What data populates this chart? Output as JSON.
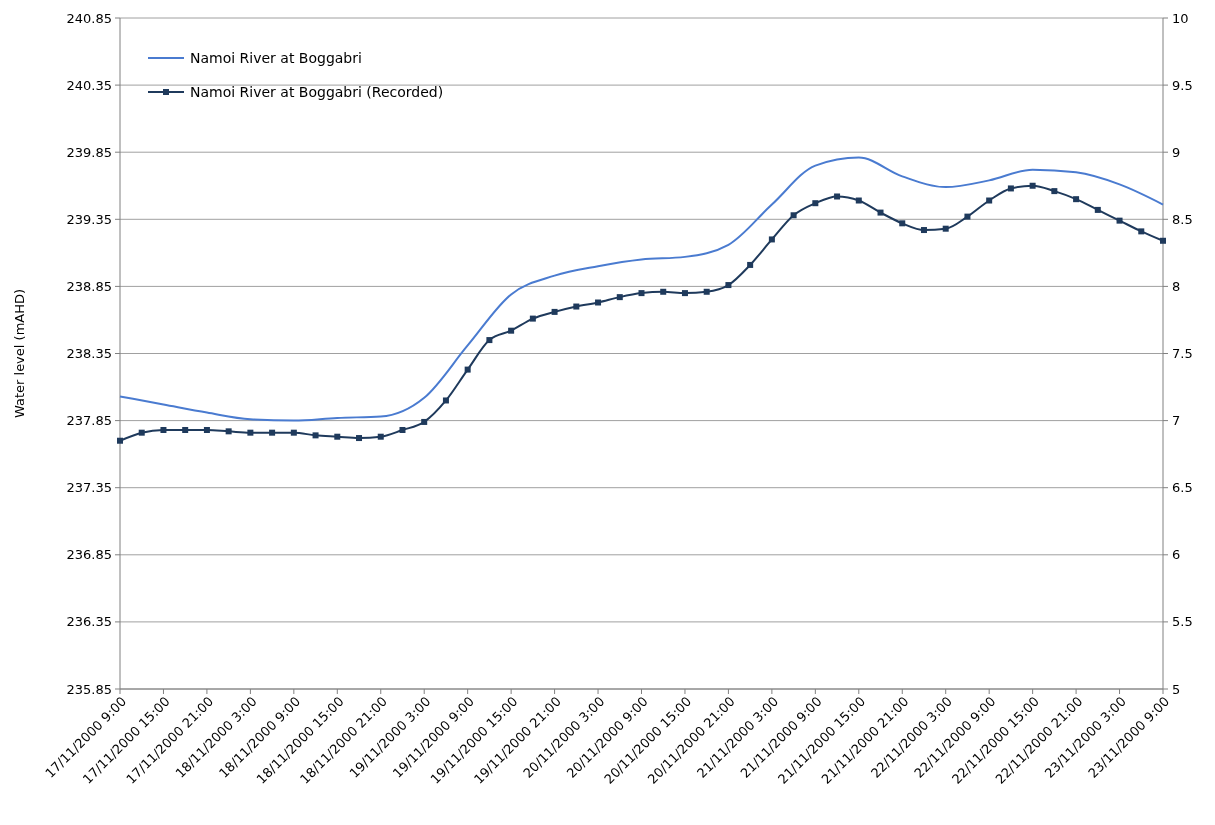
{
  "chart_data": {
    "type": "line",
    "ylabel": "Water level (mAHD)",
    "ylim": [
      235.85,
      240.85
    ],
    "yticks": [
      235.85,
      236.35,
      236.85,
      237.35,
      237.85,
      238.35,
      238.85,
      239.35,
      239.85,
      240.35,
      240.85
    ],
    "y2lim": [
      5,
      10
    ],
    "y2ticks": [
      5,
      5.5,
      6,
      6.5,
      7,
      7.5,
      8,
      8.5,
      9,
      9.5,
      10
    ],
    "xlim": [
      "2000-11-17T09:00",
      "2000-11-23T09:00"
    ],
    "xticks": [
      {
        "value": "2000-11-17T09:00",
        "label": "17/11/2000 9:00"
      },
      {
        "value": "2000-11-17T15:00",
        "label": "17/11/2000 15:00"
      },
      {
        "value": "2000-11-17T21:00",
        "label": "17/11/2000 21:00"
      },
      {
        "value": "2000-11-18T03:00",
        "label": "18/11/2000 3:00"
      },
      {
        "value": "2000-11-18T09:00",
        "label": "18/11/2000 9:00"
      },
      {
        "value": "2000-11-18T15:00",
        "label": "18/11/2000 15:00"
      },
      {
        "value": "2000-11-18T21:00",
        "label": "18/11/2000 21:00"
      },
      {
        "value": "2000-11-19T03:00",
        "label": "19/11/2000 3:00"
      },
      {
        "value": "2000-11-19T09:00",
        "label": "19/11/2000 9:00"
      },
      {
        "value": "2000-11-19T15:00",
        "label": "19/11/2000 15:00"
      },
      {
        "value": "2000-11-19T21:00",
        "label": "19/11/2000 21:00"
      },
      {
        "value": "2000-11-20T03:00",
        "label": "20/11/2000 3:00"
      },
      {
        "value": "2000-11-20T09:00",
        "label": "20/11/2000 9:00"
      },
      {
        "value": "2000-11-20T15:00",
        "label": "20/11/2000 15:00"
      },
      {
        "value": "2000-11-20T21:00",
        "label": "20/11/2000 21:00"
      },
      {
        "value": "2000-11-21T03:00",
        "label": "21/11/2000 3:00"
      },
      {
        "value": "2000-11-21T09:00",
        "label": "21/11/2000 9:00"
      },
      {
        "value": "2000-11-21T15:00",
        "label": "21/11/2000 15:00"
      },
      {
        "value": "2000-11-21T21:00",
        "label": "21/11/2000 21:00"
      },
      {
        "value": "2000-11-22T03:00",
        "label": "22/11/2000 3:00"
      },
      {
        "value": "2000-11-22T09:00",
        "label": "22/11/2000 9:00"
      },
      {
        "value": "2000-11-22T15:00",
        "label": "22/11/2000 15:00"
      },
      {
        "value": "2000-11-22T21:00",
        "label": "22/11/2000 21:00"
      },
      {
        "value": "2000-11-23T03:00",
        "label": "23/11/2000 3:00"
      },
      {
        "value": "2000-11-23T09:00",
        "label": "23/11/2000 9:00"
      }
    ],
    "grid": "y",
    "legend": "top left",
    "series": [
      {
        "name": "Namoi River at Boggabri",
        "color": "#4a7bd0",
        "marker": "none",
        "x": [
          "2000-11-17T09:00",
          "2000-11-17T15:00",
          "2000-11-17T21:00",
          "2000-11-18T03:00",
          "2000-11-18T09:00",
          "2000-11-18T15:00",
          "2000-11-18T21:00",
          "2000-11-19T03:00",
          "2000-11-19T09:00",
          "2000-11-19T15:00",
          "2000-11-19T21:00",
          "2000-11-20T03:00",
          "2000-11-20T09:00",
          "2000-11-20T15:00",
          "2000-11-20T21:00",
          "2000-11-21T03:00",
          "2000-11-21T09:00",
          "2000-11-21T15:00",
          "2000-11-21T21:00",
          "2000-11-22T03:00",
          "2000-11-22T09:00",
          "2000-11-22T15:00",
          "2000-11-22T21:00",
          "2000-11-23T03:00",
          "2000-11-23T09:00"
        ],
        "values": [
          238.03,
          237.97,
          237.91,
          237.86,
          237.85,
          237.87,
          237.88,
          238.02,
          238.41,
          238.79,
          238.93,
          239.0,
          239.05,
          239.07,
          239.16,
          239.46,
          239.75,
          239.81,
          239.67,
          239.59,
          239.64,
          239.72,
          239.7,
          239.61,
          239.46
        ]
      },
      {
        "name": "Namoi River at Boggabri (Recorded)",
        "color": "#1f3a5c",
        "marker": "square",
        "x": [
          "2000-11-17T09:00",
          "2000-11-17T12:00",
          "2000-11-17T15:00",
          "2000-11-17T18:00",
          "2000-11-17T21:00",
          "2000-11-18T00:00",
          "2000-11-18T03:00",
          "2000-11-18T06:00",
          "2000-11-18T09:00",
          "2000-11-18T12:00",
          "2000-11-18T15:00",
          "2000-11-18T18:00",
          "2000-11-18T21:00",
          "2000-11-19T00:00",
          "2000-11-19T03:00",
          "2000-11-19T06:00",
          "2000-11-19T09:00",
          "2000-11-19T12:00",
          "2000-11-19T15:00",
          "2000-11-19T18:00",
          "2000-11-19T21:00",
          "2000-11-20T00:00",
          "2000-11-20T03:00",
          "2000-11-20T06:00",
          "2000-11-20T09:00",
          "2000-11-20T12:00",
          "2000-11-20T15:00",
          "2000-11-20T18:00",
          "2000-11-20T21:00",
          "2000-11-21T00:00",
          "2000-11-21T03:00",
          "2000-11-21T06:00",
          "2000-11-21T09:00",
          "2000-11-21T12:00",
          "2000-11-21T15:00",
          "2000-11-21T18:00",
          "2000-11-21T21:00",
          "2000-11-22T00:00",
          "2000-11-22T03:00",
          "2000-11-22T06:00",
          "2000-11-22T09:00",
          "2000-11-22T12:00",
          "2000-11-22T15:00",
          "2000-11-22T18:00",
          "2000-11-22T21:00",
          "2000-11-23T00:00",
          "2000-11-23T03:00",
          "2000-11-23T06:00",
          "2000-11-23T09:00"
        ],
        "values": [
          237.7,
          237.76,
          237.78,
          237.78,
          237.78,
          237.77,
          237.76,
          237.76,
          237.76,
          237.74,
          237.73,
          237.72,
          237.73,
          237.78,
          237.84,
          238.0,
          238.23,
          238.45,
          238.52,
          238.61,
          238.66,
          238.7,
          238.73,
          238.77,
          238.8,
          238.81,
          238.8,
          238.81,
          238.86,
          239.01,
          239.2,
          239.38,
          239.47,
          239.52,
          239.49,
          239.4,
          239.32,
          239.27,
          239.28,
          239.37,
          239.49,
          239.58,
          239.6,
          239.56,
          239.5,
          239.42,
          239.34,
          239.26,
          239.19
        ]
      }
    ]
  }
}
